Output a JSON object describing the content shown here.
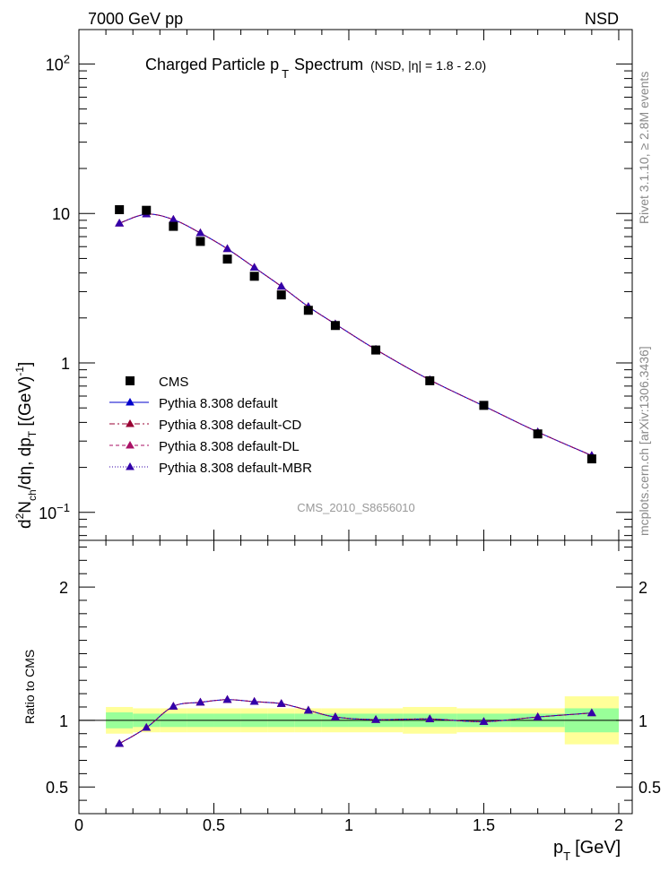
{
  "header": {
    "energy_label": "7000 GeV pp",
    "process_label": "NSD"
  },
  "side_labels": {
    "rivet": "Rivet 3.1.10, ≥ 2.8M events",
    "mcplots": "mcplots.cern.ch [arXiv:1306.3436]"
  },
  "chart_data": {
    "type": "scatter",
    "title": {
      "main_prefix": "Charged Particle p",
      "main_sub": "T",
      "main_suffix": "Spectrum",
      "qualifier": "(NSD, |η| = 1.8 - 2.0)"
    },
    "analysis_id": "CMS_2010_S8656010",
    "log_y": true,
    "xlim": [
      0,
      2.05
    ],
    "ylim": [
      0.065,
      170
    ],
    "ratio_ylim": [
      0.3,
      2.35
    ],
    "xlabel": {
      "main": "p",
      "sub": "T",
      "unit": "[GeV]"
    },
    "ylabel": {
      "d": "d",
      "sup2": "2",
      "n": "N",
      "sub_ch": "ch",
      "mid": "/dη, dp",
      "sub_t": "T",
      "unit": " [(GeV)",
      "sup_m1": "-1",
      "close": "]"
    },
    "ratio_ylabel": "Ratio to CMS",
    "x_ticks": [
      {
        "value": 0,
        "label": "0"
      },
      {
        "value": 0.5,
        "label": "0.5"
      },
      {
        "value": 1,
        "label": "1"
      },
      {
        "value": 1.5,
        "label": "1.5"
      },
      {
        "value": 2,
        "label": "2"
      }
    ],
    "y_ticks": [
      {
        "value": 0.1,
        "base": "10",
        "exp": "−1"
      },
      {
        "value": 1,
        "base": "1",
        "exp": ""
      },
      {
        "value": 10,
        "base": "10",
        "exp": ""
      },
      {
        "value": 100,
        "base": "10",
        "exp": "2"
      }
    ],
    "ratio_ticks": [
      {
        "value": 0.5,
        "label": "0.5"
      },
      {
        "value": 1,
        "label": "1"
      },
      {
        "value": 2,
        "label": "2"
      }
    ],
    "data": {
      "name": "CMS",
      "x": [
        0.15,
        0.25,
        0.35,
        0.45,
        0.55,
        0.65,
        0.75,
        0.85,
        0.95,
        1.1,
        1.3,
        1.5,
        1.7,
        1.9
      ],
      "y": [
        10.6,
        10.5,
        8.2,
        6.5,
        4.95,
        3.8,
        2.85,
        2.25,
        1.78,
        1.22,
        0.76,
        0.52,
        0.335,
        0.228
      ],
      "bin_edges": [
        0.1,
        0.2,
        0.3,
        0.4,
        0.5,
        0.6,
        0.7,
        0.8,
        0.9,
        1.0,
        1.2,
        1.4,
        1.6,
        1.8,
        2.0
      ],
      "band_inner": [
        0.06,
        0.05,
        0.05,
        0.05,
        0.05,
        0.05,
        0.05,
        0.05,
        0.05,
        0.05,
        0.05,
        0.05,
        0.05,
        0.09
      ],
      "band_outer": [
        0.1,
        0.09,
        0.09,
        0.09,
        0.09,
        0.09,
        0.09,
        0.09,
        0.09,
        0.09,
        0.1,
        0.09,
        0.09,
        0.18
      ]
    },
    "series": [
      {
        "name": "Pythia 8.308 default",
        "color": "#0000cc",
        "dash": "",
        "marker": "triangle",
        "y": [
          8.6,
          9.9,
          9.1,
          7.4,
          5.8,
          4.35,
          3.25,
          2.38,
          1.82,
          1.23,
          0.77,
          0.515,
          0.345,
          0.24
        ],
        "ratio": [
          0.825,
          0.945,
          1.105,
          1.135,
          1.155,
          1.14,
          1.125,
          1.075,
          1.025,
          1.005,
          1.01,
          0.99,
          1.025,
          1.055
        ]
      },
      {
        "name": "Pythia 8.308 default-CD",
        "color": "#990033",
        "dash": "6,3,2,3",
        "marker": "triangle",
        "y": [
          8.6,
          9.9,
          9.1,
          7.4,
          5.8,
          4.35,
          3.25,
          2.38,
          1.82,
          1.23,
          0.77,
          0.515,
          0.345,
          0.24
        ],
        "ratio": [
          0.825,
          0.945,
          1.105,
          1.135,
          1.155,
          1.14,
          1.125,
          1.075,
          1.025,
          1.005,
          1.01,
          0.99,
          1.025,
          1.055
        ]
      },
      {
        "name": "Pythia 8.308 default-DL",
        "color": "#aa1166",
        "dash": "4,3",
        "marker": "triangle",
        "y": [
          8.6,
          9.9,
          9.1,
          7.4,
          5.8,
          4.35,
          3.25,
          2.38,
          1.82,
          1.23,
          0.77,
          0.515,
          0.345,
          0.24
        ],
        "ratio": [
          0.825,
          0.945,
          1.105,
          1.135,
          1.155,
          1.14,
          1.125,
          1.075,
          1.025,
          1.005,
          1.01,
          0.99,
          1.025,
          1.055
        ]
      },
      {
        "name": "Pythia 8.308 default-MBR",
        "color": "#3300aa",
        "dash": "1,2",
        "marker": "triangle",
        "y": [
          8.6,
          9.9,
          9.1,
          7.4,
          5.8,
          4.35,
          3.25,
          2.38,
          1.82,
          1.23,
          0.77,
          0.515,
          0.345,
          0.24
        ],
        "ratio": [
          0.825,
          0.945,
          1.105,
          1.135,
          1.155,
          1.14,
          1.125,
          1.075,
          1.025,
          1.005,
          1.01,
          0.99,
          1.025,
          1.055
        ]
      }
    ],
    "colors": {
      "band_inner": "#99ff99",
      "band_outer": "#ffff99",
      "data_marker": "#000000"
    }
  }
}
